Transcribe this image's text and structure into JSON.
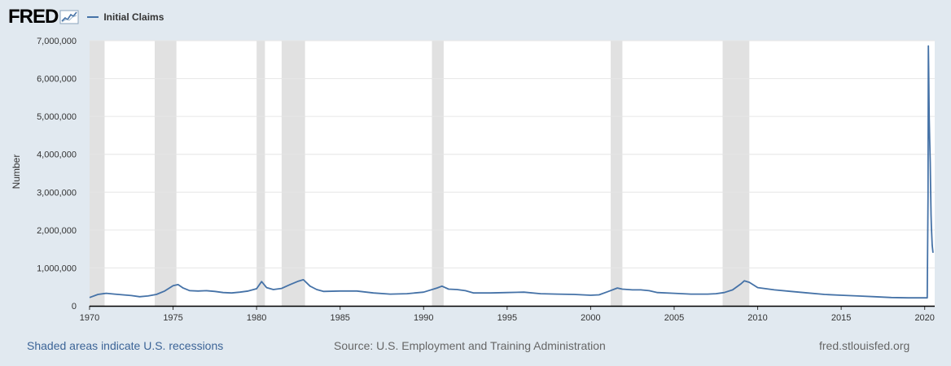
{
  "header": {
    "logo_text": "FRED",
    "logo_icon": "chart-line-icon"
  },
  "chart_data": {
    "type": "line",
    "title": "",
    "xlabel": "",
    "ylabel": "Number",
    "xlim": [
      1970.0,
      2020.6
    ],
    "ylim": [
      0,
      7000000
    ],
    "y_ticks": [
      0,
      1000000,
      2000000,
      3000000,
      4000000,
      5000000,
      6000000,
      7000000
    ],
    "y_tick_labels": [
      "0",
      "1,000,000",
      "2,000,000",
      "3,000,000",
      "4,000,000",
      "5,000,000",
      "6,000,000",
      "7,000,000"
    ],
    "x_ticks": [
      1970,
      1975,
      1980,
      1985,
      1990,
      1995,
      2000,
      2005,
      2010,
      2015,
      2020
    ],
    "x_tick_labels": [
      "1970",
      "1975",
      "1980",
      "1985",
      "1990",
      "1995",
      "2000",
      "2005",
      "2010",
      "2015",
      "2020"
    ],
    "grid": "horizontal",
    "legend": "top-left",
    "recessions": [
      [
        1969.9,
        1970.9
      ],
      [
        1973.9,
        1975.2
      ],
      [
        1980.0,
        1980.5
      ],
      [
        1981.5,
        1982.9
      ],
      [
        1990.5,
        1991.2
      ],
      [
        2001.2,
        2001.9
      ],
      [
        2007.9,
        2009.5
      ]
    ],
    "series": [
      {
        "name": "Initial Claims",
        "color": "#4572a7",
        "x": [
          1970.0,
          1970.5,
          1971.0,
          1971.5,
          1972.0,
          1972.5,
          1973.0,
          1973.5,
          1974.0,
          1974.5,
          1975.0,
          1975.3,
          1975.6,
          1976.0,
          1976.5,
          1977.0,
          1977.5,
          1978.0,
          1978.5,
          1979.0,
          1979.5,
          1980.0,
          1980.3,
          1980.6,
          1981.0,
          1981.5,
          1982.0,
          1982.5,
          1982.8,
          1983.2,
          1983.6,
          1984.0,
          1985.0,
          1986.0,
          1987.0,
          1988.0,
          1989.0,
          1990.0,
          1990.8,
          1991.1,
          1991.5,
          1992.0,
          1992.5,
          1993.0,
          1994.0,
          1995.0,
          1996.0,
          1997.0,
          1998.0,
          1999.0,
          2000.0,
          2000.5,
          2001.0,
          2001.6,
          2001.9,
          2002.5,
          2003.0,
          2003.5,
          2004.0,
          2005.0,
          2006.0,
          2007.0,
          2007.5,
          2008.0,
          2008.5,
          2009.0,
          2009.2,
          2009.5,
          2010.0,
          2011.0,
          2012.0,
          2013.0,
          2014.0,
          2015.0,
          2016.0,
          2017.0,
          2018.0,
          2019.0,
          2019.8,
          2020.15,
          2020.2,
          2020.22,
          2020.24,
          2020.27,
          2020.3,
          2020.33,
          2020.35,
          2020.38,
          2020.4,
          2020.45,
          2020.5
        ],
        "values": [
          220000,
          300000,
          330000,
          310000,
          290000,
          270000,
          240000,
          260000,
          300000,
          390000,
          530000,
          560000,
          470000,
          400000,
          390000,
          400000,
          380000,
          350000,
          340000,
          360000,
          390000,
          450000,
          640000,
          480000,
          430000,
          460000,
          560000,
          650000,
          690000,
          520000,
          430000,
          380000,
          390000,
          390000,
          340000,
          310000,
          320000,
          360000,
          470000,
          520000,
          440000,
          430000,
          400000,
          340000,
          340000,
          350000,
          360000,
          320000,
          310000,
          300000,
          280000,
          290000,
          370000,
          470000,
          440000,
          420000,
          420000,
          400000,
          350000,
          330000,
          310000,
          310000,
          320000,
          350000,
          420000,
          580000,
          660000,
          620000,
          480000,
          420000,
          380000,
          340000,
          300000,
          280000,
          260000,
          240000,
          220000,
          210000,
          210000,
          210000,
          2900000,
          6860000,
          6200000,
          5000000,
          4400000,
          3800000,
          3200000,
          2400000,
          2100000,
          1600000,
          1400000
        ]
      }
    ]
  },
  "footer": {
    "recession_note": "Shaded areas indicate U.S. recessions",
    "source": "Source: U.S. Employment and Training Administration",
    "site": "fred.stlouisfed.org"
  }
}
